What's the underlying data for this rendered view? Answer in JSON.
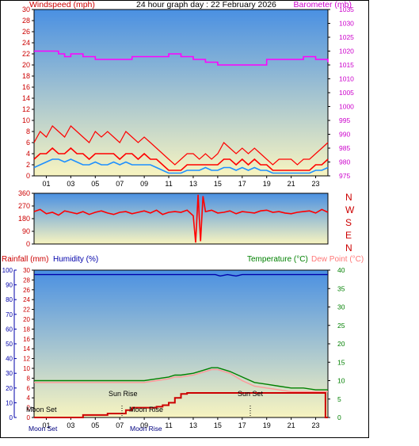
{
  "title": "24 hour graph day : 22 February 2026",
  "colors": {
    "wind": "#ff0000",
    "gust": "#ff0000",
    "avgwind": "#1e90ff",
    "baro": "#ff00ff",
    "dir": "#ff0000",
    "temp": "#008000",
    "dew": "#ff9999",
    "hum": "#0000aa",
    "rain": "#cc0000",
    "sky_top": "#4a90e2",
    "sky_bottom": "#f8f4c0"
  },
  "chart_data": [
    {
      "type": "line",
      "left_axis_label": "Windspeed (mph)",
      "right_axis_label": "Barometer (mb)",
      "x_tick_labels": [
        "01",
        "03",
        "05",
        "07",
        "09",
        "11",
        "13",
        "15",
        "17",
        "19",
        "21",
        "23"
      ],
      "x_range_hours": [
        0,
        24
      ],
      "y_left_range": [
        0,
        30
      ],
      "y_left_ticks": [
        "0",
        "2",
        "4",
        "6",
        "8",
        "10",
        "12",
        "14",
        "16",
        "18",
        "20",
        "22",
        "24",
        "26",
        "28",
        "30"
      ],
      "y_right_range": [
        975,
        1035
      ],
      "y_right_ticks": [
        "975",
        "980",
        "985",
        "990",
        "995",
        "1000",
        "1005",
        "1010",
        "1015",
        "1020",
        "1025",
        "1030",
        "1035"
      ],
      "series": [
        {
          "key": "gust",
          "x": [
            0,
            0.5,
            1,
            1.5,
            2,
            2.5,
            3,
            3.5,
            4,
            4.5,
            5,
            5.5,
            6,
            6.5,
            7,
            7.5,
            8,
            8.5,
            9,
            9.5,
            10,
            10.5,
            11,
            11.5,
            12,
            12.5,
            13,
            13.5,
            14,
            14.5,
            15,
            15.5,
            16,
            16.5,
            17,
            17.5,
            18,
            18.5,
            19,
            19.5,
            20,
            20.5,
            21,
            21.5,
            22,
            22.5,
            23,
            23.5,
            24
          ],
          "values": [
            6,
            8,
            7,
            9,
            8,
            7,
            9,
            8,
            7,
            6,
            8,
            7,
            8,
            7,
            6,
            8,
            7,
            6,
            7,
            6,
            5,
            4,
            3,
            2,
            3,
            4,
            4,
            3,
            4,
            3,
            4,
            6,
            5,
            4,
            5,
            4,
            5,
            4,
            3,
            2,
            3,
            3,
            3,
            2,
            3,
            3,
            4,
            5,
            6
          ]
        },
        {
          "key": "wind",
          "x": [
            0,
            0.5,
            1,
            1.5,
            2,
            2.5,
            3,
            3.5,
            4,
            4.5,
            5,
            5.5,
            6,
            6.5,
            7,
            7.5,
            8,
            8.5,
            9,
            9.5,
            10,
            10.5,
            11,
            11.5,
            12,
            12.5,
            13,
            13.5,
            14,
            14.5,
            15,
            15.5,
            16,
            16.5,
            17,
            17.5,
            18,
            18.5,
            19,
            19.5,
            20,
            20.5,
            21,
            21.5,
            22,
            22.5,
            23,
            23.5,
            24
          ],
          "values": [
            3,
            4,
            4,
            5,
            4,
            4,
            5,
            4,
            4,
            3,
            4,
            4,
            4,
            4,
            3,
            4,
            4,
            3,
            4,
            3,
            3,
            2,
            1,
            1,
            1,
            2,
            2,
            2,
            2,
            2,
            2,
            3,
            3,
            2,
            3,
            2,
            3,
            2,
            2,
            1,
            1,
            1,
            1,
            1,
            1,
            1,
            2,
            2,
            3
          ]
        },
        {
          "key": "avgwind",
          "x": [
            0,
            0.5,
            1,
            1.5,
            2,
            2.5,
            3,
            3.5,
            4,
            4.5,
            5,
            5.5,
            6,
            6.5,
            7,
            7.5,
            8,
            8.5,
            9,
            9.5,
            10,
            10.5,
            11,
            11.5,
            12,
            12.5,
            13,
            13.5,
            14,
            14.5,
            15,
            15.5,
            16,
            16.5,
            17,
            17.5,
            18,
            18.5,
            19,
            19.5,
            20,
            20.5,
            21,
            21.5,
            22,
            22.5,
            23,
            23.5,
            24
          ],
          "values": [
            1.5,
            2,
            2.5,
            3,
            3,
            2.5,
            3,
            2.5,
            2,
            2,
            2.5,
            2,
            2,
            2.5,
            2,
            2.5,
            2,
            2,
            2,
            2,
            1.5,
            1,
            0.5,
            0.5,
            0.5,
            1,
            1,
            1,
            1.5,
            1,
            1,
            1.5,
            1.5,
            1,
            1.5,
            1,
            1.5,
            1,
            1,
            0.5,
            0.5,
            0.5,
            0.5,
            0.5,
            0.5,
            0.5,
            1,
            1,
            1.5
          ]
        },
        {
          "key": "baro",
          "axis": "right",
          "x": [
            0,
            2,
            2.5,
            3,
            4,
            5,
            6,
            8,
            9,
            10,
            11,
            12,
            13,
            14,
            15,
            16,
            18,
            19,
            20,
            21,
            22,
            23,
            24
          ],
          "values": [
            1020,
            1019,
            1018,
            1019,
            1018,
            1017,
            1017,
            1018,
            1018,
            1018,
            1019,
            1018,
            1017,
            1016,
            1015,
            1015,
            1015,
            1017,
            1017,
            1017,
            1018,
            1017,
            1016
          ]
        }
      ]
    },
    {
      "type": "line",
      "y_range": [
        0,
        360
      ],
      "y_ticks": [
        "0",
        "90",
        "180",
        "270",
        "360"
      ],
      "compass_labels": [
        "N",
        "W",
        "S",
        "E",
        "N"
      ],
      "series": [
        {
          "key": "dir",
          "x": [
            0,
            0.5,
            1,
            1.5,
            2,
            2.5,
            3,
            3.5,
            4,
            4.5,
            5,
            5.5,
            6,
            6.5,
            7,
            7.5,
            8,
            8.5,
            9,
            9.5,
            10,
            10.5,
            11,
            11.5,
            12,
            12.5,
            13,
            13.2,
            13.4,
            13.6,
            13.8,
            14,
            14.5,
            15,
            15.5,
            16,
            16.5,
            17,
            17.5,
            18,
            18.5,
            19,
            19.5,
            20,
            20.5,
            21,
            21.5,
            22,
            22.5,
            23,
            23.5,
            24
          ],
          "values": [
            230,
            245,
            215,
            225,
            205,
            235,
            225,
            215,
            230,
            210,
            225,
            235,
            220,
            210,
            225,
            230,
            215,
            225,
            235,
            220,
            240,
            210,
            225,
            230,
            225,
            240,
            200,
            10,
            350,
            20,
            340,
            230,
            240,
            220,
            225,
            235,
            215,
            230,
            225,
            220,
            235,
            240,
            225,
            230,
            220,
            215,
            225,
            230,
            235,
            220,
            245,
            225
          ]
        }
      ]
    },
    {
      "type": "line",
      "left_axis_label_1": "Rainfall (mm)",
      "left_axis_label_2": "Humidity (%)",
      "right_axis_label_1": "Temperature (°C)",
      "right_axis_label_2": "Dew Point (°C)",
      "x_tick_labels": [
        "01",
        "03",
        "05",
        "07",
        "09",
        "11",
        "13",
        "15",
        "17",
        "19",
        "21",
        "23"
      ],
      "y_rain_range": [
        0,
        30
      ],
      "y_rain_ticks": [
        "0",
        "2",
        "4",
        "6",
        "8",
        "10",
        "12",
        "14",
        "16",
        "18",
        "20",
        "22",
        "24",
        "26",
        "28",
        "30"
      ],
      "y_hum_range": [
        0,
        100
      ],
      "y_hum_ticks": [
        "0",
        "10",
        "20",
        "30",
        "40",
        "50",
        "60",
        "70",
        "80",
        "90",
        "100"
      ],
      "y_temp_range": [
        0,
        40
      ],
      "y_temp_ticks": [
        "0",
        "5",
        "10",
        "15",
        "20",
        "25",
        "30",
        "35",
        "40"
      ],
      "annotations": {
        "moon_set": "Moon Set",
        "moon_rise": "Moon Rise",
        "sun_rise": "Sun Rise",
        "sun_set": "Sun Set"
      },
      "series": [
        {
          "key": "temp",
          "axis": "temp",
          "x": [
            0,
            2,
            4,
            6,
            8,
            9,
            10,
            11,
            11.5,
            12,
            13,
            13.5,
            14,
            14.5,
            15,
            15.5,
            16,
            17,
            18,
            19,
            20,
            21,
            22,
            23,
            24
          ],
          "values": [
            10,
            10,
            10,
            10,
            10,
            10,
            10.5,
            11,
            11.5,
            11.5,
            12,
            12.5,
            13,
            13.5,
            13.5,
            13,
            12.5,
            11,
            9.5,
            9,
            8.5,
            8,
            8,
            7.5,
            7.5
          ]
        },
        {
          "key": "dew",
          "axis": "temp",
          "x": [
            0,
            2,
            4,
            6,
            8,
            9,
            10,
            11,
            11.5,
            12,
            13,
            13.5,
            14,
            14.5,
            15,
            15.5,
            16,
            17,
            18,
            19,
            20,
            21,
            22,
            23,
            24
          ],
          "values": [
            9.5,
            9.5,
            9.5,
            9.5,
            9.5,
            9.5,
            10,
            10.5,
            11,
            11,
            11.5,
            12,
            12.5,
            13,
            13,
            12.5,
            12,
            10,
            8.5,
            8,
            7.5,
            7,
            7,
            7,
            7
          ]
        },
        {
          "key": "hum",
          "axis": "hum",
          "x": [
            0,
            4,
            8,
            12,
            14.8,
            15.2,
            15.8,
            16.5,
            17,
            20,
            24
          ],
          "values": [
            97,
            97,
            97,
            97,
            97,
            96,
            97,
            96,
            97,
            97,
            97
          ]
        },
        {
          "key": "rain",
          "axis": "rain",
          "x": [
            0,
            3.5,
            4,
            5.5,
            6,
            7,
            7.5,
            8,
            9,
            10,
            10.5,
            11,
            11.5,
            12,
            12.5,
            13,
            15,
            17,
            20,
            23.5,
            23.8,
            24
          ],
          "values": [
            0,
            0,
            0.5,
            0.5,
            0.8,
            0.8,
            1.5,
            2,
            2,
            2.2,
            2.5,
            3,
            4,
            4.8,
            5,
            5,
            5,
            5,
            5,
            5,
            0,
            0
          ]
        }
      ]
    }
  ]
}
